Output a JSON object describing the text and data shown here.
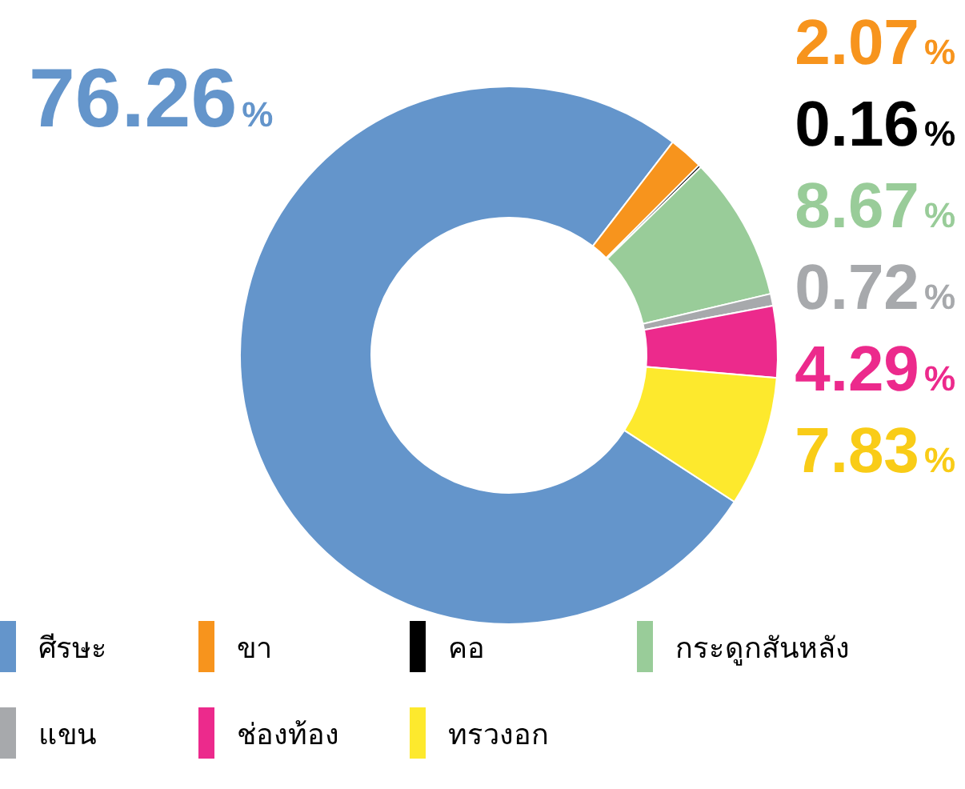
{
  "chart_data": {
    "type": "donut",
    "categories": [
      "ศีรษะ",
      "ขา",
      "คอ",
      "กระดูกสันหลัง",
      "แขน",
      "ช่องท้อง",
      "ทรวงอก"
    ],
    "values": [
      76.26,
      2.07,
      0.16,
      8.67,
      0.72,
      4.29,
      7.83
    ],
    "colors": [
      "#6495cb",
      "#f7941d",
      "#000000",
      "#99cc99",
      "#a7a9ac",
      "#ec2a8c",
      "#fde92d"
    ],
    "value_labels": [
      "76.26%",
      "2.07%",
      "0.16%",
      "8.67%",
      "0.72%",
      "4.29%",
      "7.83%"
    ],
    "legend": "bottom"
  }
}
